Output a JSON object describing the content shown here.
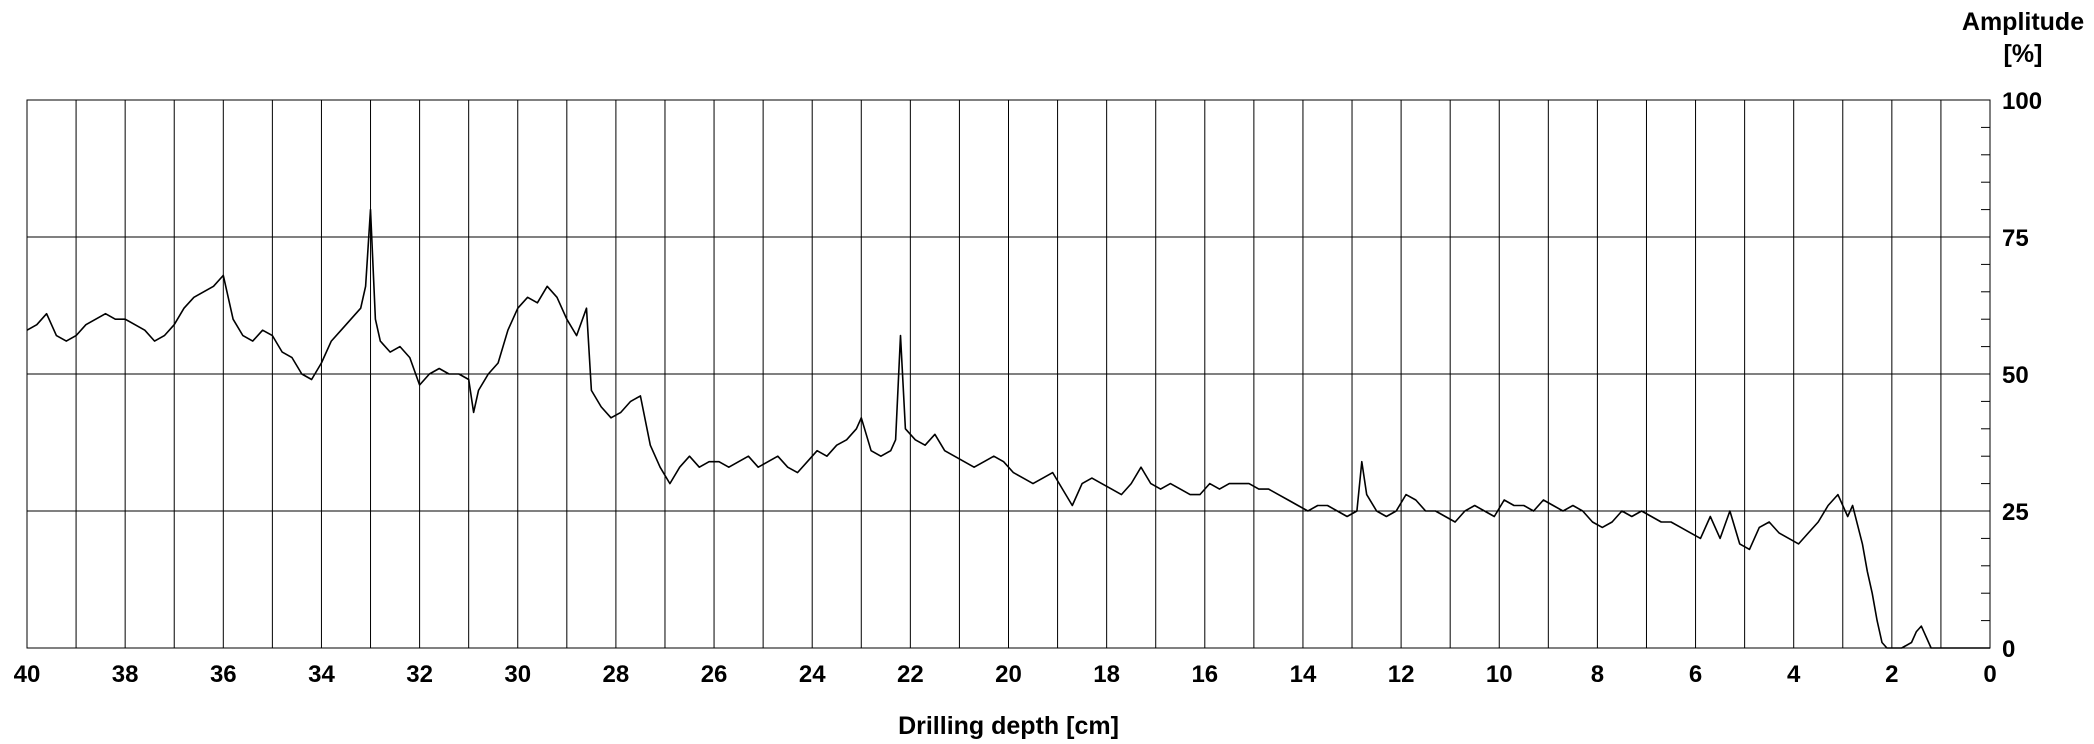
{
  "chart_data": {
    "type": "line",
    "xlabel": "Drilling depth [cm]",
    "ylabel": [
      "Amplitude",
      "[%]"
    ],
    "x_axis": {
      "min": 0,
      "max": 40,
      "reversed": true,
      "major_ticks": [
        40,
        38,
        36,
        34,
        32,
        30,
        28,
        26,
        24,
        22,
        20,
        18,
        16,
        14,
        12,
        10,
        8,
        6,
        4,
        2,
        0
      ]
    },
    "y_axis": {
      "min": 0,
      "max": 100,
      "position": "right",
      "major_ticks": [
        0,
        25,
        50,
        75,
        100
      ]
    },
    "grid": {
      "vertical_every": 1,
      "horizontal_every": 25
    },
    "line_color": "#000000",
    "series": [
      {
        "points": [
          [
            40,
            58
          ],
          [
            39.8,
            59
          ],
          [
            39.6,
            61
          ],
          [
            39.4,
            57
          ],
          [
            39.2,
            56
          ],
          [
            39,
            57
          ],
          [
            38.8,
            59
          ],
          [
            38.6,
            60
          ],
          [
            38.4,
            61
          ],
          [
            38.2,
            60
          ],
          [
            38,
            60
          ],
          [
            37.8,
            59
          ],
          [
            37.6,
            58
          ],
          [
            37.4,
            56
          ],
          [
            37.2,
            57
          ],
          [
            37,
            59
          ],
          [
            36.8,
            62
          ],
          [
            36.6,
            64
          ],
          [
            36.4,
            65
          ],
          [
            36.2,
            66
          ],
          [
            36,
            68
          ],
          [
            35.8,
            60
          ],
          [
            35.6,
            57
          ],
          [
            35.4,
            56
          ],
          [
            35.2,
            58
          ],
          [
            35,
            57
          ],
          [
            34.8,
            54
          ],
          [
            34.6,
            53
          ],
          [
            34.4,
            50
          ],
          [
            34.2,
            49
          ],
          [
            34,
            52
          ],
          [
            33.8,
            56
          ],
          [
            33.6,
            58
          ],
          [
            33.4,
            60
          ],
          [
            33.2,
            62
          ],
          [
            33.1,
            66
          ],
          [
            33,
            80
          ],
          [
            32.9,
            60
          ],
          [
            32.8,
            56
          ],
          [
            32.6,
            54
          ],
          [
            32.4,
            55
          ],
          [
            32.2,
            53
          ],
          [
            32,
            48
          ],
          [
            31.8,
            50
          ],
          [
            31.6,
            51
          ],
          [
            31.4,
            50
          ],
          [
            31.2,
            50
          ],
          [
            31,
            49
          ],
          [
            30.9,
            43
          ],
          [
            30.8,
            47
          ],
          [
            30.6,
            50
          ],
          [
            30.4,
            52
          ],
          [
            30.2,
            58
          ],
          [
            30,
            62
          ],
          [
            29.8,
            64
          ],
          [
            29.6,
            63
          ],
          [
            29.4,
            66
          ],
          [
            29.2,
            64
          ],
          [
            29,
            60
          ],
          [
            28.8,
            57
          ],
          [
            28.6,
            62
          ],
          [
            28.5,
            47
          ],
          [
            28.3,
            44
          ],
          [
            28.1,
            42
          ],
          [
            27.9,
            43
          ],
          [
            27.7,
            45
          ],
          [
            27.5,
            46
          ],
          [
            27.3,
            37
          ],
          [
            27.1,
            33
          ],
          [
            26.9,
            30
          ],
          [
            26.7,
            33
          ],
          [
            26.5,
            35
          ],
          [
            26.3,
            33
          ],
          [
            26.1,
            34
          ],
          [
            25.9,
            34
          ],
          [
            25.7,
            33
          ],
          [
            25.5,
            34
          ],
          [
            25.3,
            35
          ],
          [
            25.1,
            33
          ],
          [
            24.9,
            34
          ],
          [
            24.7,
            35
          ],
          [
            24.5,
            33
          ],
          [
            24.3,
            32
          ],
          [
            24.1,
            34
          ],
          [
            23.9,
            36
          ],
          [
            23.7,
            35
          ],
          [
            23.5,
            37
          ],
          [
            23.3,
            38
          ],
          [
            23.1,
            40
          ],
          [
            23,
            42
          ],
          [
            22.8,
            36
          ],
          [
            22.6,
            35
          ],
          [
            22.4,
            36
          ],
          [
            22.3,
            38
          ],
          [
            22.2,
            57
          ],
          [
            22.1,
            40
          ],
          [
            21.9,
            38
          ],
          [
            21.7,
            37
          ],
          [
            21.5,
            39
          ],
          [
            21.3,
            36
          ],
          [
            21.1,
            35
          ],
          [
            20.9,
            34
          ],
          [
            20.7,
            33
          ],
          [
            20.5,
            34
          ],
          [
            20.3,
            35
          ],
          [
            20.1,
            34
          ],
          [
            19.9,
            32
          ],
          [
            19.7,
            31
          ],
          [
            19.5,
            30
          ],
          [
            19.3,
            31
          ],
          [
            19.1,
            32
          ],
          [
            18.9,
            29
          ],
          [
            18.7,
            26
          ],
          [
            18.5,
            30
          ],
          [
            18.3,
            31
          ],
          [
            18.1,
            30
          ],
          [
            17.9,
            29
          ],
          [
            17.7,
            28
          ],
          [
            17.5,
            30
          ],
          [
            17.3,
            33
          ],
          [
            17.1,
            30
          ],
          [
            16.9,
            29
          ],
          [
            16.7,
            30
          ],
          [
            16.5,
            29
          ],
          [
            16.3,
            28
          ],
          [
            16.1,
            28
          ],
          [
            15.9,
            30
          ],
          [
            15.7,
            29
          ],
          [
            15.5,
            30
          ],
          [
            15.3,
            30
          ],
          [
            15.1,
            30
          ],
          [
            14.9,
            29
          ],
          [
            14.7,
            29
          ],
          [
            14.5,
            28
          ],
          [
            14.3,
            27
          ],
          [
            14.1,
            26
          ],
          [
            13.9,
            25
          ],
          [
            13.7,
            26
          ],
          [
            13.5,
            26
          ],
          [
            13.3,
            25
          ],
          [
            13.1,
            24
          ],
          [
            12.9,
            25
          ],
          [
            12.8,
            34
          ],
          [
            12.7,
            28
          ],
          [
            12.5,
            25
          ],
          [
            12.3,
            24
          ],
          [
            12.1,
            25
          ],
          [
            11.9,
            28
          ],
          [
            11.7,
            27
          ],
          [
            11.5,
            25
          ],
          [
            11.3,
            25
          ],
          [
            11.1,
            24
          ],
          [
            10.9,
            23
          ],
          [
            10.7,
            25
          ],
          [
            10.5,
            26
          ],
          [
            10.3,
            25
          ],
          [
            10.1,
            24
          ],
          [
            9.9,
            27
          ],
          [
            9.7,
            26
          ],
          [
            9.5,
            26
          ],
          [
            9.3,
            25
          ],
          [
            9.1,
            27
          ],
          [
            8.9,
            26
          ],
          [
            8.7,
            25
          ],
          [
            8.5,
            26
          ],
          [
            8.3,
            25
          ],
          [
            8.1,
            23
          ],
          [
            7.9,
            22
          ],
          [
            7.7,
            23
          ],
          [
            7.5,
            25
          ],
          [
            7.3,
            24
          ],
          [
            7.1,
            25
          ],
          [
            6.9,
            24
          ],
          [
            6.7,
            23
          ],
          [
            6.5,
            23
          ],
          [
            6.3,
            22
          ],
          [
            6.1,
            21
          ],
          [
            5.9,
            20
          ],
          [
            5.7,
            24
          ],
          [
            5.5,
            20
          ],
          [
            5.3,
            25
          ],
          [
            5.1,
            19
          ],
          [
            4.9,
            18
          ],
          [
            4.7,
            22
          ],
          [
            4.5,
            23
          ],
          [
            4.3,
            21
          ],
          [
            4.1,
            20
          ],
          [
            3.9,
            19
          ],
          [
            3.7,
            21
          ],
          [
            3.5,
            23
          ],
          [
            3.3,
            26
          ],
          [
            3.1,
            28
          ],
          [
            2.9,
            24
          ],
          [
            2.8,
            26
          ],
          [
            2.6,
            19
          ],
          [
            2.5,
            14
          ],
          [
            2.4,
            10
          ],
          [
            2.3,
            5
          ],
          [
            2.2,
            1
          ],
          [
            2.1,
            0
          ],
          [
            1.8,
            0
          ],
          [
            1.6,
            1
          ],
          [
            1.5,
            3
          ],
          [
            1.4,
            4
          ],
          [
            1.3,
            2
          ],
          [
            1.2,
            0
          ],
          [
            1,
            0
          ],
          [
            0,
            0
          ]
        ]
      }
    ]
  }
}
